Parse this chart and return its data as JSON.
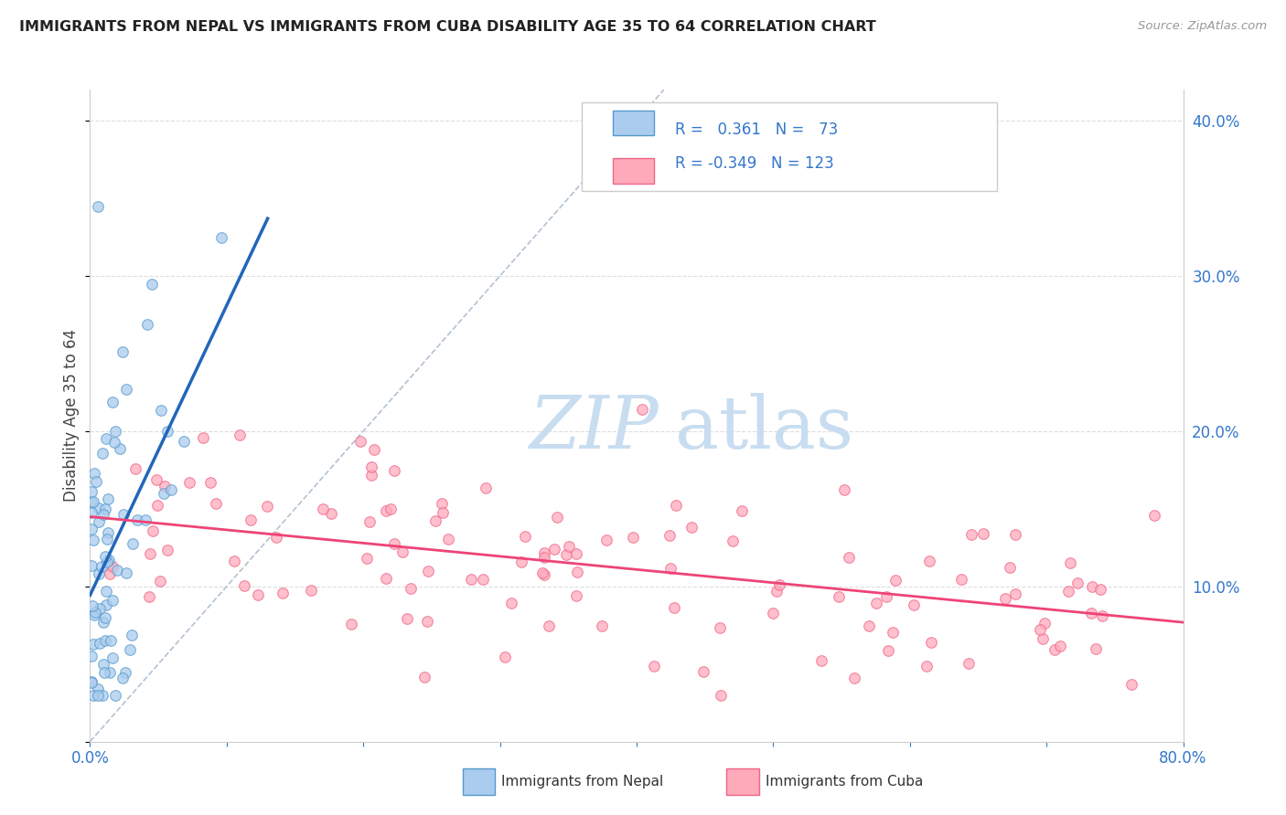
{
  "title": "IMMIGRANTS FROM NEPAL VS IMMIGRANTS FROM CUBA DISABILITY AGE 35 TO 64 CORRELATION CHART",
  "source_text": "Source: ZipAtlas.com",
  "ylabel": "Disability Age 35 to 64",
  "watermark_zip": "ZIP",
  "watermark_atlas": "atlas",
  "xmin": 0.0,
  "xmax": 0.8,
  "ymin": 0.0,
  "ymax": 0.42,
  "xticks": [
    0.0,
    0.1,
    0.2,
    0.3,
    0.4,
    0.5,
    0.6,
    0.7,
    0.8
  ],
  "xticklabels_left": [
    "0.0%",
    "",
    "",
    "",
    "",
    "",
    "",
    "",
    ""
  ],
  "xticklabels_right": [
    "",
    "",
    "",
    "",
    "",
    "",
    "",
    "",
    "80.0%"
  ],
  "yticks": [
    0.0,
    0.1,
    0.2,
    0.3,
    0.4
  ],
  "yticklabels_right": [
    "",
    "10.0%",
    "20.0%",
    "30.0%",
    "40.0%"
  ],
  "nepal_color": "#aaccee",
  "nepal_edge_color": "#5599cc",
  "cuba_color": "#ffaabb",
  "cuba_edge_color": "#ee6688",
  "nepal_R": 0.361,
  "nepal_N": 73,
  "cuba_R": -0.349,
  "cuba_N": 123,
  "nepal_line_color": "#2266bb",
  "cuba_line_color": "#ee4477",
  "grid_color": "#dddddd",
  "ref_line_color": "#aabbcc",
  "legend_text_color": "#3377cc",
  "tick_color": "#3377cc",
  "nepal_seed": 12,
  "cuba_seed": 77
}
